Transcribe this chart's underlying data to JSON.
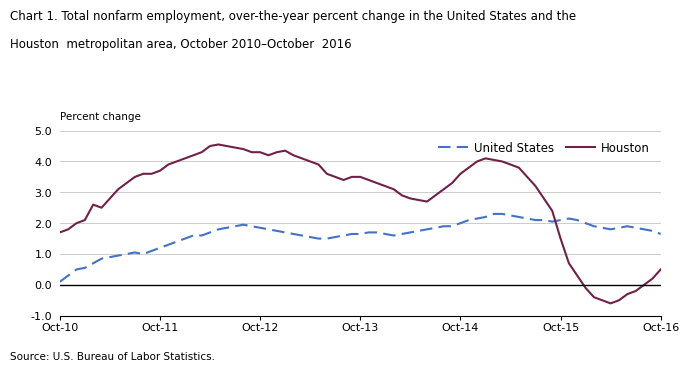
{
  "title_line1": "Chart 1. Total nonfarm employment, over-the-year percent change in the United States and the",
  "title_line2": "Houston  metropolitan area, October 2010–October  2016",
  "ylabel": "Percent change",
  "source": "Source: U.S. Bureau of Labor Statistics.",
  "xlim_start": 0,
  "xlim_end": 72,
  "ylim": [
    -1.0,
    5.0
  ],
  "yticks": [
    -1.0,
    0.0,
    1.0,
    2.0,
    3.0,
    4.0,
    5.0
  ],
  "xtick_positions": [
    0,
    12,
    24,
    36,
    48,
    60,
    72
  ],
  "xtick_labels": [
    "Oct-10",
    "Oct-11",
    "Oct-12",
    "Oct-13",
    "Oct-14",
    "Oct-15",
    "Oct-16"
  ],
  "us_color": "#4472C4",
  "houston_color": "#70214A",
  "us_values": [
    0.1,
    0.3,
    0.5,
    0.55,
    0.7,
    0.85,
    0.9,
    0.95,
    1.0,
    1.05,
    1.0,
    1.1,
    1.2,
    1.3,
    1.4,
    1.5,
    1.6,
    1.6,
    1.7,
    1.8,
    1.85,
    1.9,
    1.95,
    1.9,
    1.85,
    1.8,
    1.75,
    1.7,
    1.65,
    1.6,
    1.55,
    1.5,
    1.5,
    1.55,
    1.6,
    1.65,
    1.65,
    1.7,
    1.7,
    1.65,
    1.6,
    1.65,
    1.7,
    1.75,
    1.8,
    1.85,
    1.9,
    1.9,
    2.0,
    2.1,
    2.15,
    2.2,
    2.3,
    2.3,
    2.25,
    2.2,
    2.15,
    2.1,
    2.1,
    2.05,
    2.1,
    2.15,
    2.1,
    2.0,
    1.9,
    1.85,
    1.8,
    1.85,
    1.9,
    1.85,
    1.8,
    1.75,
    1.65
  ],
  "houston_values": [
    1.7,
    1.8,
    2.0,
    2.1,
    2.6,
    2.5,
    2.8,
    3.1,
    3.3,
    3.5,
    3.6,
    3.6,
    3.7,
    3.9,
    4.0,
    4.1,
    4.2,
    4.3,
    4.5,
    4.55,
    4.5,
    4.45,
    4.4,
    4.3,
    4.3,
    4.2,
    4.3,
    4.35,
    4.2,
    4.1,
    4.0,
    3.9,
    3.6,
    3.5,
    3.4,
    3.5,
    3.5,
    3.4,
    3.3,
    3.2,
    3.1,
    2.9,
    2.8,
    2.75,
    2.7,
    2.9,
    3.1,
    3.3,
    3.6,
    3.8,
    4.0,
    4.1,
    4.05,
    4.0,
    3.9,
    3.8,
    3.5,
    3.2,
    2.8,
    2.4,
    1.5,
    0.7,
    0.3,
    -0.1,
    -0.4,
    -0.5,
    -0.6,
    -0.5,
    -0.3,
    -0.2,
    0.0,
    0.2,
    0.5
  ],
  "background_color": "#FFFFFF",
  "grid_color": "#CCCCCC"
}
